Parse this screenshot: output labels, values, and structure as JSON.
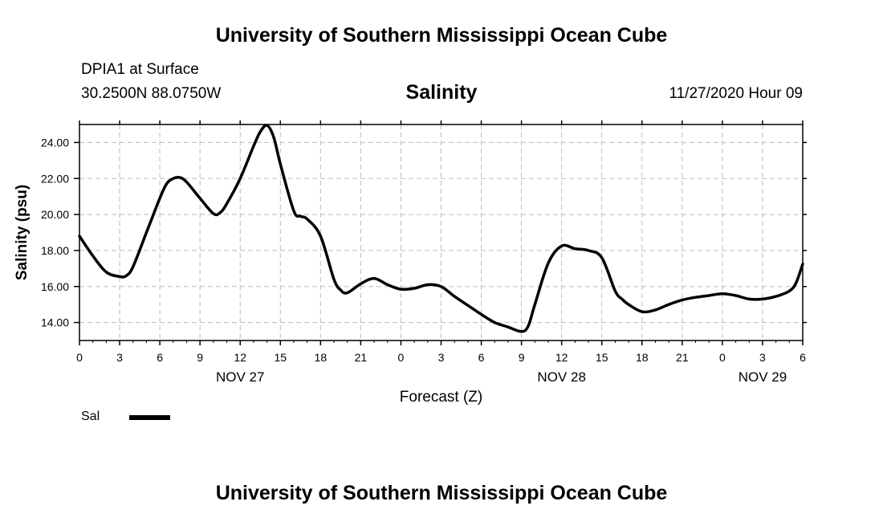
{
  "header": {
    "title": "University of Southern Mississippi Ocean Cube",
    "station": "DPIA1 at Surface",
    "coords": "30.2500N 88.0750W",
    "parameter": "Salinity",
    "timestamp": "11/27/2020 Hour 09"
  },
  "footer": {
    "title": "University of Southern Mississippi Ocean Cube"
  },
  "legend": {
    "label": "Sal",
    "color": "#000000"
  },
  "chart_data": {
    "type": "line",
    "title": "Salinity",
    "xlabel": "Forecast (Z)",
    "ylabel": "Salinity (psu)",
    "xlim": [
      0,
      54
    ],
    "ylim": [
      13.0,
      25.0
    ],
    "grid": true,
    "xtick_values": [
      0,
      3,
      6,
      9,
      12,
      15,
      18,
      21,
      24,
      27,
      30,
      33,
      36,
      39,
      42,
      45,
      48,
      51,
      54
    ],
    "xtick_labels": [
      "0",
      "3",
      "6",
      "9",
      "12",
      "15",
      "18",
      "21",
      "0",
      "3",
      "6",
      "9",
      "12",
      "15",
      "18",
      "21",
      "0",
      "3",
      "6"
    ],
    "ytick_values": [
      14,
      16,
      18,
      20,
      22,
      24
    ],
    "ytick_labels": [
      "14.00",
      "16.00",
      "18.00",
      "20.00",
      "22.00",
      "24.00"
    ],
    "date_labels": [
      {
        "label": "NOV 27",
        "x": 12
      },
      {
        "label": "NOV 28",
        "x": 36
      },
      {
        "label": "NOV 29",
        "x": 51
      }
    ],
    "series": [
      {
        "name": "Sal",
        "color": "#000000",
        "x": [
          0,
          1,
          2,
          3,
          3.5,
          4,
          5,
          6,
          6.5,
          7,
          7.5,
          8,
          9,
          10,
          10.5,
          11,
          12,
          13,
          13.5,
          14,
          14.5,
          15,
          16,
          16.5,
          17,
          18,
          19,
          19.5,
          20,
          21,
          22,
          23,
          24,
          25,
          26,
          27,
          28,
          29,
          30,
          31,
          32,
          33,
          33.5,
          34,
          35,
          36,
          37,
          38,
          39,
          40,
          40.5,
          41,
          42,
          43,
          44,
          45,
          46,
          47,
          48,
          49,
          50,
          51,
          52,
          53,
          53.5,
          54
        ],
        "y": [
          18.8,
          17.7,
          16.8,
          16.55,
          16.6,
          17.1,
          19.0,
          20.9,
          21.7,
          22.0,
          22.05,
          21.8,
          20.9,
          20.05,
          20.1,
          20.6,
          22.0,
          23.8,
          24.6,
          24.95,
          24.3,
          22.8,
          20.2,
          19.9,
          19.75,
          18.8,
          16.4,
          15.8,
          15.65,
          16.15,
          16.45,
          16.1,
          15.85,
          15.9,
          16.1,
          16.0,
          15.45,
          14.95,
          14.45,
          14.0,
          13.75,
          13.5,
          13.8,
          15.0,
          17.3,
          18.25,
          18.1,
          18.0,
          17.6,
          15.75,
          15.3,
          15.0,
          14.6,
          14.7,
          15.0,
          15.25,
          15.4,
          15.5,
          15.6,
          15.5,
          15.3,
          15.3,
          15.45,
          15.75,
          16.2,
          17.25
        ]
      }
    ]
  }
}
